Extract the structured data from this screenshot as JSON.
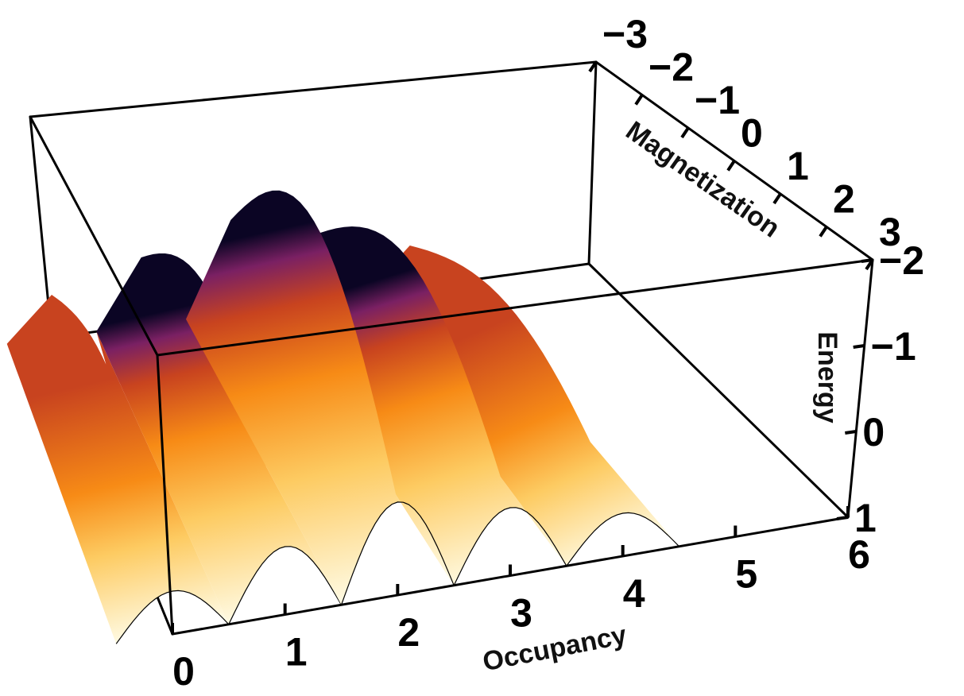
{
  "chart_data": {
    "type": "surface3d",
    "x_axis": {
      "label": "Occupancy",
      "ticks": [
        "0",
        "1",
        "2",
        "3",
        "4",
        "5",
        "6"
      ],
      "range": [
        0,
        6
      ]
    },
    "y_axis": {
      "label": "Magnetization",
      "ticks": [
        "−3",
        "−2",
        "−1",
        "0",
        "1",
        "2",
        "3"
      ],
      "range": [
        -3,
        3
      ]
    },
    "z_axis": {
      "label": "Energy",
      "ticks": [
        "−2",
        "−1",
        "0",
        "1"
      ],
      "range": [
        -2,
        1
      ],
      "inverted": true
    },
    "ridges": [
      {
        "occupancy": 0,
        "peak_energy": -0.2
      },
      {
        "occupancy": 1,
        "peak_energy": -0.9
      },
      {
        "occupancy": 2,
        "peak_energy": -1.6
      },
      {
        "occupancy": 3,
        "peak_energy": -0.9
      },
      {
        "occupancy": 4,
        "peak_energy": -0.2
      }
    ],
    "colormap": [
      "#fffce8",
      "#fdcb62",
      "#f78b16",
      "#c8431f",
      "#7a2063",
      "#3b0f6f",
      "#0b0524"
    ]
  }
}
